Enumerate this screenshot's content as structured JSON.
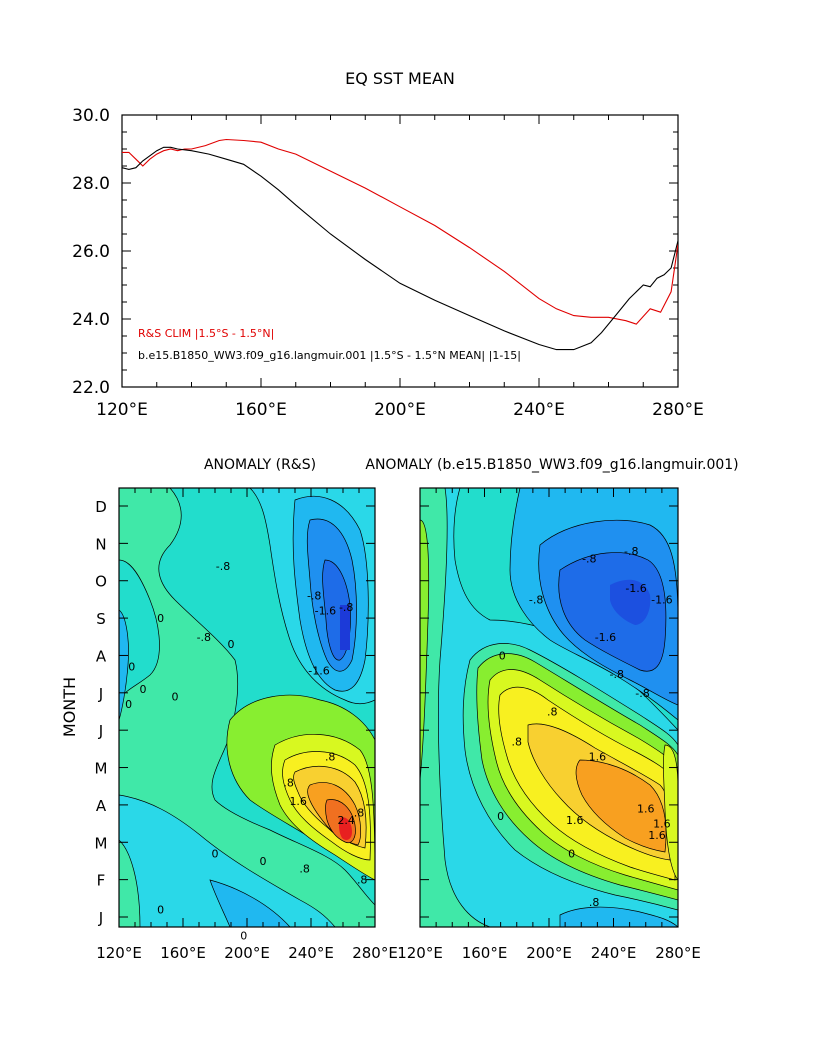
{
  "chart_data": [
    {
      "type": "line",
      "title": "EQ SST MEAN",
      "xlim": [
        120,
        280
      ],
      "ylim": [
        22,
        30
      ],
      "xticks": [
        {
          "value": 120,
          "label": "120°E"
        },
        {
          "value": 160,
          "label": "160°E"
        },
        {
          "value": 200,
          "label": "200°E"
        },
        {
          "value": 240,
          "label": "240°E"
        },
        {
          "value": 280,
          "label": "280°E"
        }
      ],
      "yticks": [
        {
          "value": 22,
          "label": "22.0"
        },
        {
          "value": 24,
          "label": "24.0"
        },
        {
          "value": 26,
          "label": "26.0"
        },
        {
          "value": 28,
          "label": "28.0"
        },
        {
          "value": 30,
          "label": "30.0"
        }
      ],
      "series": [
        {
          "name": "R&S CLIM |1.5°S - 1.5°N|",
          "color": "#e00000",
          "x": [
            120,
            122,
            124,
            126,
            128,
            130,
            132,
            134,
            136,
            138,
            140,
            144,
            148,
            150,
            155,
            160,
            165,
            170,
            180,
            190,
            200,
            210,
            220,
            230,
            240,
            245,
            250,
            255,
            260,
            265,
            268,
            272,
            275,
            278,
            280
          ],
          "y": [
            28.9,
            28.9,
            28.7,
            28.5,
            28.7,
            28.85,
            28.95,
            29.0,
            28.95,
            29.0,
            29.0,
            29.1,
            29.25,
            29.28,
            29.25,
            29.2,
            29.0,
            28.85,
            28.35,
            27.85,
            27.3,
            26.75,
            26.1,
            25.4,
            24.6,
            24.3,
            24.1,
            24.05,
            24.05,
            23.95,
            23.85,
            24.3,
            24.2,
            24.8,
            26.2
          ]
        },
        {
          "name": "b.e15.B1850_WW3.f09_g16.langmuir.001 |1.5°S - 1.5°N MEAN| |1-15|",
          "color": "#000000",
          "x": [
            120,
            122,
            124,
            126,
            128,
            130,
            132,
            134,
            136,
            140,
            145,
            150,
            155,
            160,
            165,
            170,
            180,
            190,
            200,
            210,
            220,
            230,
            240,
            245,
            250,
            255,
            258,
            262,
            266,
            270,
            272,
            274,
            276,
            278,
            280
          ],
          "y": [
            28.45,
            28.4,
            28.45,
            28.65,
            28.8,
            28.95,
            29.05,
            29.05,
            29.0,
            28.95,
            28.85,
            28.7,
            28.55,
            28.2,
            27.8,
            27.35,
            26.5,
            25.75,
            25.05,
            24.55,
            24.1,
            23.65,
            23.25,
            23.1,
            23.1,
            23.3,
            23.6,
            24.1,
            24.6,
            25.0,
            24.95,
            25.2,
            25.3,
            25.5,
            26.3
          ]
        }
      ]
    },
    {
      "type": "heatmap",
      "title": "ANOMALY (R&S)",
      "ylabel": "MONTH",
      "xlim": [
        120,
        280
      ],
      "xticks": [
        {
          "value": 120,
          "label": "120°E"
        },
        {
          "value": 160,
          "label": "160°E"
        },
        {
          "value": 200,
          "label": "200°E"
        },
        {
          "value": 240,
          "label": "240°E"
        },
        {
          "value": 280,
          "label": "280°E"
        }
      ],
      "month_labels": [
        "J",
        "F",
        "M",
        "A",
        "M",
        "J",
        "J",
        "A",
        "S",
        "O",
        "N",
        "D"
      ],
      "contour_labels": [
        {
          "x": 185,
          "m": 10.4,
          "text": "-.8"
        },
        {
          "x": 173,
          "m": 8.5,
          "text": "-.8"
        },
        {
          "x": 249,
          "m": 9.2,
          "text": "-1.6"
        },
        {
          "x": 245,
          "m": 7.6,
          "text": "-1.6"
        },
        {
          "x": 262,
          "m": 9.3,
          "text": "-.8"
        },
        {
          "x": 242,
          "m": 9.6,
          "text": "-.8"
        },
        {
          "x": 190,
          "m": 8.3,
          "text": "0"
        },
        {
          "x": 146,
          "m": 9.0,
          "text": "0"
        },
        {
          "x": 128,
          "m": 7.7,
          "text": "0"
        },
        {
          "x": 135,
          "m": 7.1,
          "text": "0"
        },
        {
          "x": 155,
          "m": 6.9,
          "text": "0"
        },
        {
          "x": 126,
          "m": 6.7,
          "text": "0"
        },
        {
          "x": 252,
          "m": 5.3,
          "text": ".8"
        },
        {
          "x": 226,
          "m": 4.6,
          "text": ".8"
        },
        {
          "x": 232,
          "m": 4.1,
          "text": "1.6"
        },
        {
          "x": 262,
          "m": 3.6,
          "text": "2.4"
        },
        {
          "x": 270,
          "m": 3.8,
          "text": ".8"
        },
        {
          "x": 236,
          "m": 2.3,
          "text": ".8"
        },
        {
          "x": 272,
          "m": 2.0,
          "text": ".8"
        },
        {
          "x": 210,
          "m": 2.5,
          "text": "0"
        },
        {
          "x": 180,
          "m": 2.7,
          "text": "0"
        },
        {
          "x": 198,
          "m": 0.5,
          "text": "0"
        },
        {
          "x": 146,
          "m": 1.2,
          "text": "0"
        }
      ]
    },
    {
      "type": "heatmap",
      "title": "ANOMALY (b.e15.B1850_WW3.f09_g16.langmuir.001)",
      "xlim": [
        120,
        280
      ],
      "xticks": [
        {
          "value": 120,
          "label": "120°E"
        },
        {
          "value": 160,
          "label": "160°E"
        },
        {
          "value": 200,
          "label": "200°E"
        },
        {
          "value": 240,
          "label": "240°E"
        },
        {
          "value": 280,
          "label": "280°E"
        }
      ],
      "month_labels": [
        "J",
        "F",
        "M",
        "A",
        "M",
        "J",
        "J",
        "A",
        "S",
        "O",
        "N",
        "D"
      ],
      "contour_labels": [
        {
          "x": 225,
          "m": 10.6,
          "text": "-.8"
        },
        {
          "x": 251,
          "m": 10.8,
          "text": "-.8"
        },
        {
          "x": 192,
          "m": 9.5,
          "text": "-.8"
        },
        {
          "x": 235,
          "m": 8.5,
          "text": "-1.6"
        },
        {
          "x": 254,
          "m": 9.8,
          "text": "-1.6"
        },
        {
          "x": 270,
          "m": 9.5,
          "text": "-1.6"
        },
        {
          "x": 242,
          "m": 7.5,
          "text": "-.8"
        },
        {
          "x": 258,
          "m": 7.0,
          "text": "-.8"
        },
        {
          "x": 171,
          "m": 8.0,
          "text": "0"
        },
        {
          "x": 202,
          "m": 6.5,
          "text": ".8"
        },
        {
          "x": 180,
          "m": 5.7,
          "text": ".8"
        },
        {
          "x": 230,
          "m": 5.3,
          "text": "1.6"
        },
        {
          "x": 216,
          "m": 3.6,
          "text": "1.6"
        },
        {
          "x": 260,
          "m": 3.9,
          "text": "1.6"
        },
        {
          "x": 270,
          "m": 3.5,
          "text": "1.6"
        },
        {
          "x": 267,
          "m": 3.2,
          "text": "1.6"
        },
        {
          "x": 170,
          "m": 3.7,
          "text": "0"
        },
        {
          "x": 214,
          "m": 2.7,
          "text": "0"
        },
        {
          "x": 228,
          "m": 1.4,
          "text": ".8"
        }
      ]
    }
  ]
}
